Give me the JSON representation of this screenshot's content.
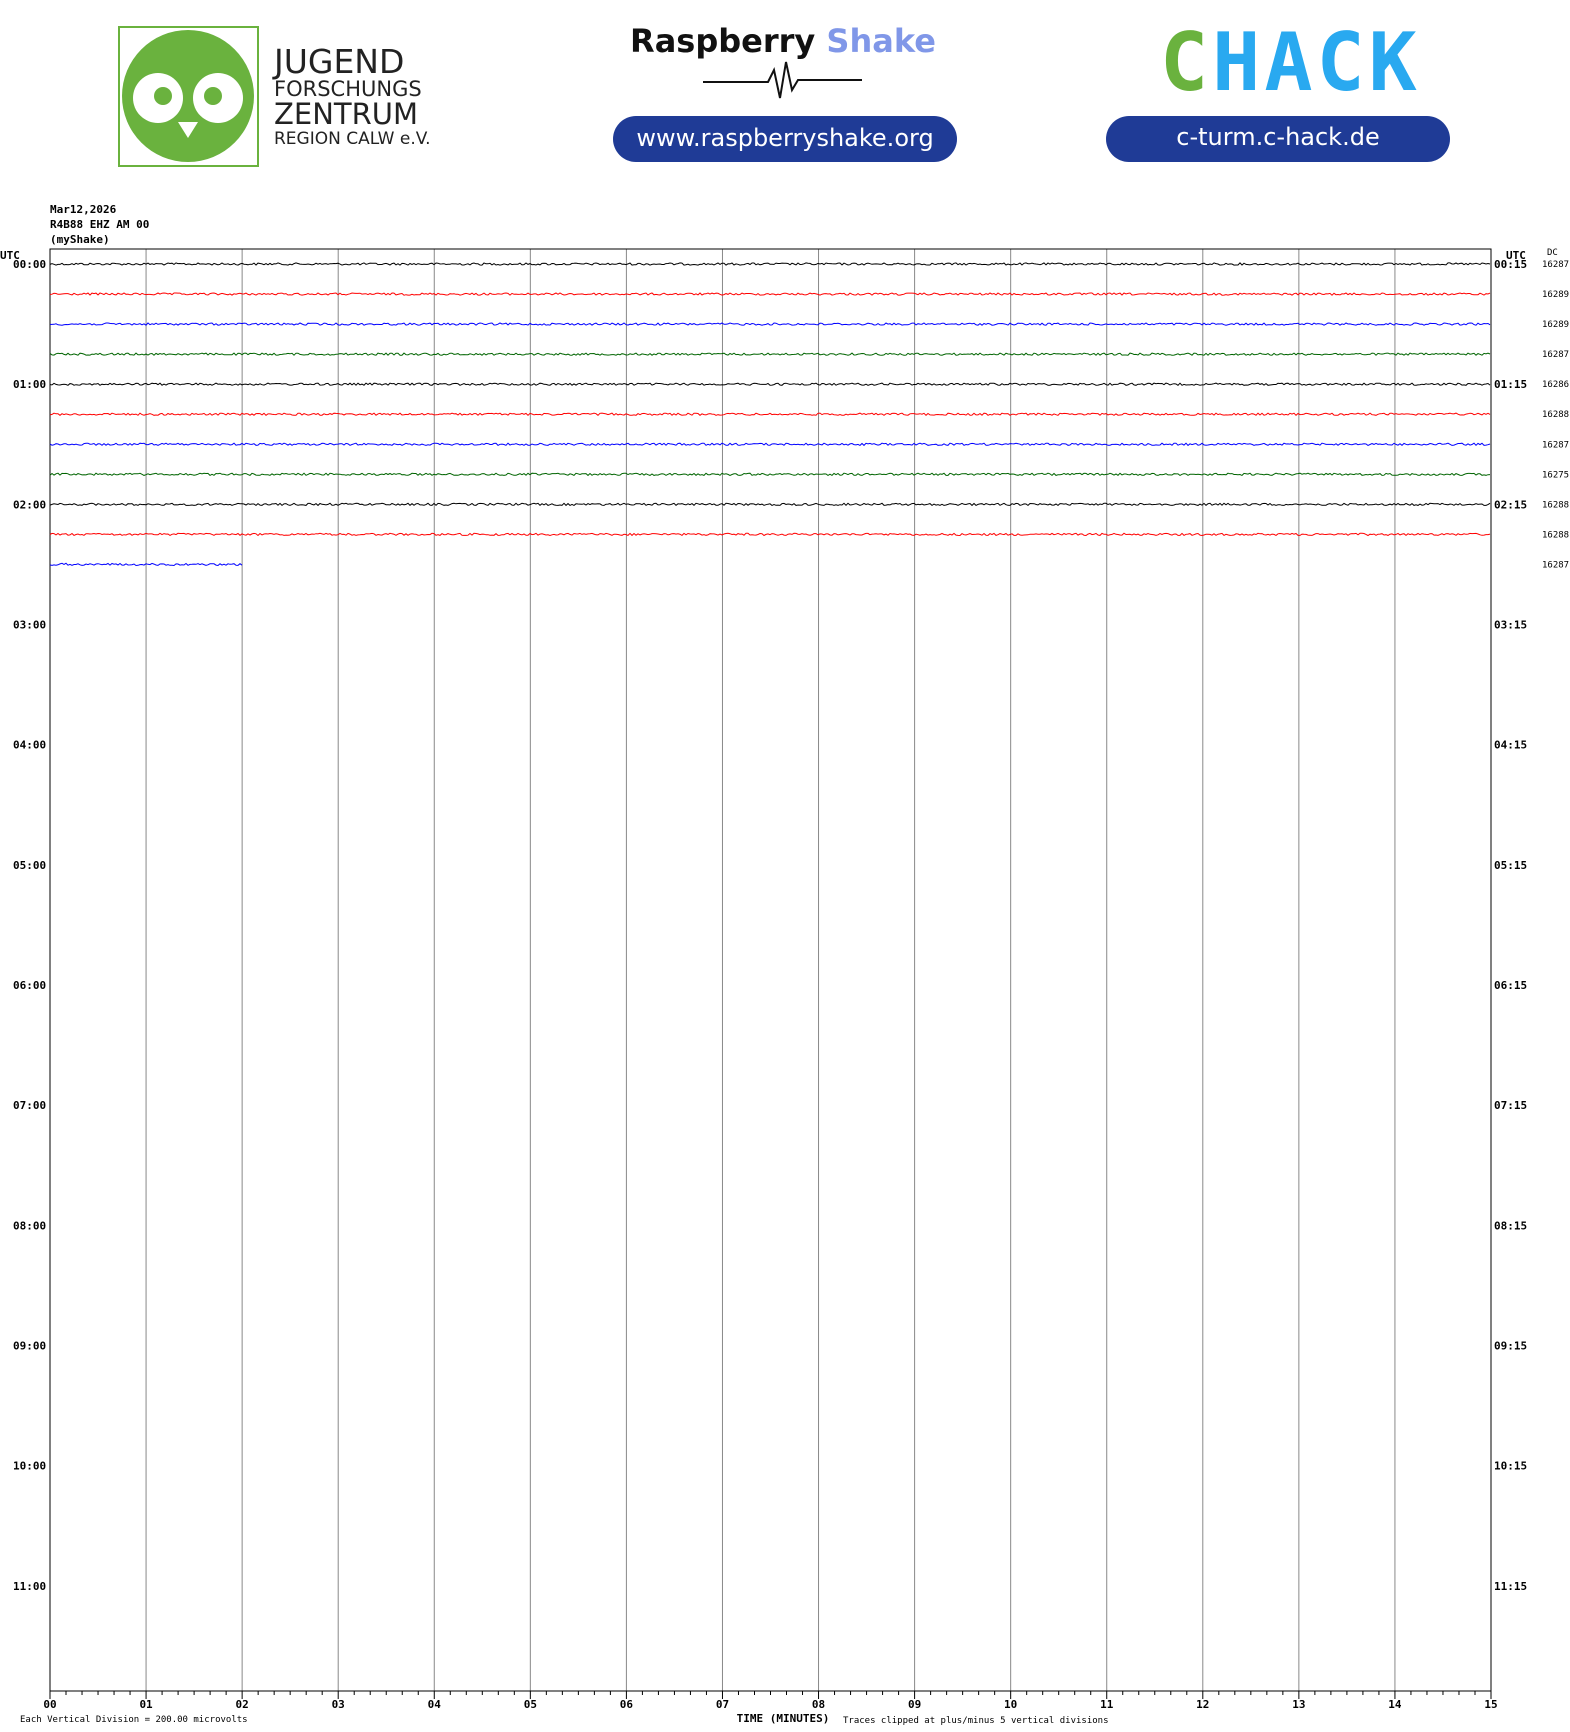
{
  "header": {
    "jfz_lines": [
      "JUGEND",
      "FORSCHUNGS",
      "ZENTRUM",
      "REGION CALW e.V."
    ],
    "rs_word1": "Raspberry",
    "rs_word2": "Shake",
    "rs_url": "www.raspberryshake.org",
    "chack_first": "C",
    "chack_rest": "HACK",
    "chack_url": "c-turm.c-hack.de"
  },
  "chart_data": {
    "type": "helicorder",
    "date": "Mar12,2026",
    "station": "R4B88 EHZ AM 00",
    "source": "(myShake)",
    "left_title": "UTC",
    "right_title": "UTC",
    "dc_title": "DC",
    "row_labels_left": [
      "00:00",
      "01:00",
      "02:00",
      "03:00",
      "04:00",
      "05:00",
      "06:00",
      "07:00",
      "08:00",
      "09:00",
      "10:00",
      "11:00"
    ],
    "row_labels_right": [
      "00:15",
      "01:15",
      "02:15",
      "03:15",
      "04:15",
      "05:15",
      "06:15",
      "07:15",
      "08:15",
      "09:15",
      "10:15",
      "11:15"
    ],
    "xlim": [
      0,
      15
    ],
    "xticks": [
      {
        "value": 0,
        "label": "00"
      },
      {
        "value": 1,
        "label": "01"
      },
      {
        "value": 2,
        "label": "02"
      },
      {
        "value": 3,
        "label": "03"
      },
      {
        "value": 4,
        "label": "04"
      },
      {
        "value": 5,
        "label": "05"
      },
      {
        "value": 6,
        "label": "06"
      },
      {
        "value": 7,
        "label": "07"
      },
      {
        "value": 8,
        "label": "08"
      },
      {
        "value": 9,
        "label": "09"
      },
      {
        "value": 10,
        "label": "10"
      },
      {
        "value": 11,
        "label": "11"
      },
      {
        "value": 12,
        "label": "12"
      },
      {
        "value": 13,
        "label": "13"
      },
      {
        "value": 14,
        "label": "14"
      },
      {
        "value": 15,
        "label": "15"
      }
    ],
    "xlabel": "TIME (MINUTES)",
    "scale_note": "Each Vertical Division =  200.00 microvolts",
    "clip_note": "Traces clipped at plus/minus 5 vertical divisions",
    "traces": [
      {
        "color": "#000000",
        "dc": 16287,
        "extent": [
          0,
          15
        ]
      },
      {
        "color": "#ff0000",
        "dc": 16289,
        "extent": [
          0,
          15
        ]
      },
      {
        "color": "#0000ff",
        "dc": 16289,
        "extent": [
          0,
          15
        ]
      },
      {
        "color": "#006400",
        "dc": 16287,
        "extent": [
          0,
          15
        ]
      },
      {
        "color": "#000000",
        "dc": 16286,
        "extent": [
          0,
          15
        ]
      },
      {
        "color": "#ff0000",
        "dc": 16288,
        "extent": [
          0,
          15
        ]
      },
      {
        "color": "#0000ff",
        "dc": 16287,
        "extent": [
          0,
          15
        ]
      },
      {
        "color": "#006400",
        "dc": 16275,
        "extent": [
          0,
          15
        ]
      },
      {
        "color": "#000000",
        "dc": 16288,
        "extent": [
          0,
          15
        ]
      },
      {
        "color": "#ff0000",
        "dc": 16288,
        "extent": [
          0,
          15
        ]
      },
      {
        "color": "#0000ff",
        "dc": 16287,
        "extent": [
          0,
          2
        ]
      }
    ]
  }
}
